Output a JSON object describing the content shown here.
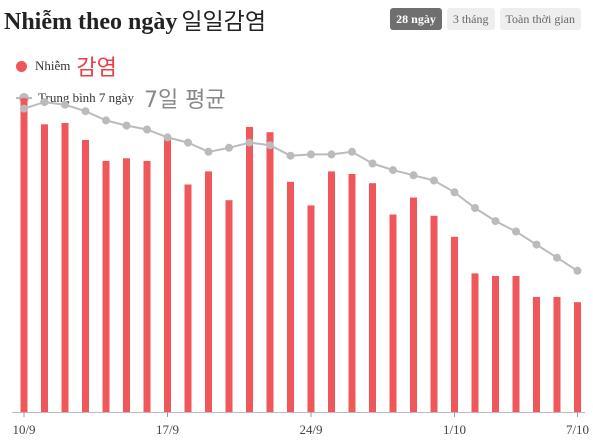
{
  "header": {
    "title": "Nhiễm theo ngày",
    "title_annotation": "일일감염"
  },
  "tabs": [
    {
      "label": "28 ngày",
      "active": true
    },
    {
      "label": "3 tháng",
      "active": false
    },
    {
      "label": "Toàn thời gian",
      "active": false
    }
  ],
  "legend": {
    "cases_label": "Nhiễm",
    "cases_annotation": "감염",
    "avg_label": "Trung bình 7 ngày",
    "avg_annotation": "7일 평균"
  },
  "colors": {
    "bar": "#f0575b",
    "avg_line": "#bbbbbb",
    "active_tab": "#6f6f6f"
  },
  "chart_data": {
    "type": "bar",
    "ylim": [
      0,
      13000
    ],
    "x_ticks": [
      {
        "index": 0,
        "label": "10/9"
      },
      {
        "index": 7,
        "label": "17/9"
      },
      {
        "index": 14,
        "label": "24/9"
      },
      {
        "index": 21,
        "label": "1/10"
      },
      {
        "index": 27,
        "label": "7/10"
      }
    ],
    "series": [
      {
        "name": "Nhiễm",
        "type": "bar",
        "values": [
          12000,
          11000,
          11050,
          10400,
          9600,
          9700,
          9600,
          10500,
          8700,
          9200,
          8100,
          10900,
          10700,
          8800,
          7900,
          9200,
          9100,
          8750,
          7550,
          8200,
          7500,
          6700,
          5300,
          5200,
          5200,
          4400,
          4400,
          4200
        ]
      },
      {
        "name": "Trung bình 7 ngày",
        "type": "line",
        "values": [
          11600,
          11850,
          11750,
          11500,
          11150,
          10950,
          10800,
          10500,
          10300,
          9950,
          10100,
          10300,
          10200,
          9800,
          9850,
          9850,
          9950,
          9500,
          9250,
          9050,
          8850,
          8400,
          7800,
          7300,
          6900,
          6400,
          5900,
          5400
        ]
      }
    ]
  }
}
